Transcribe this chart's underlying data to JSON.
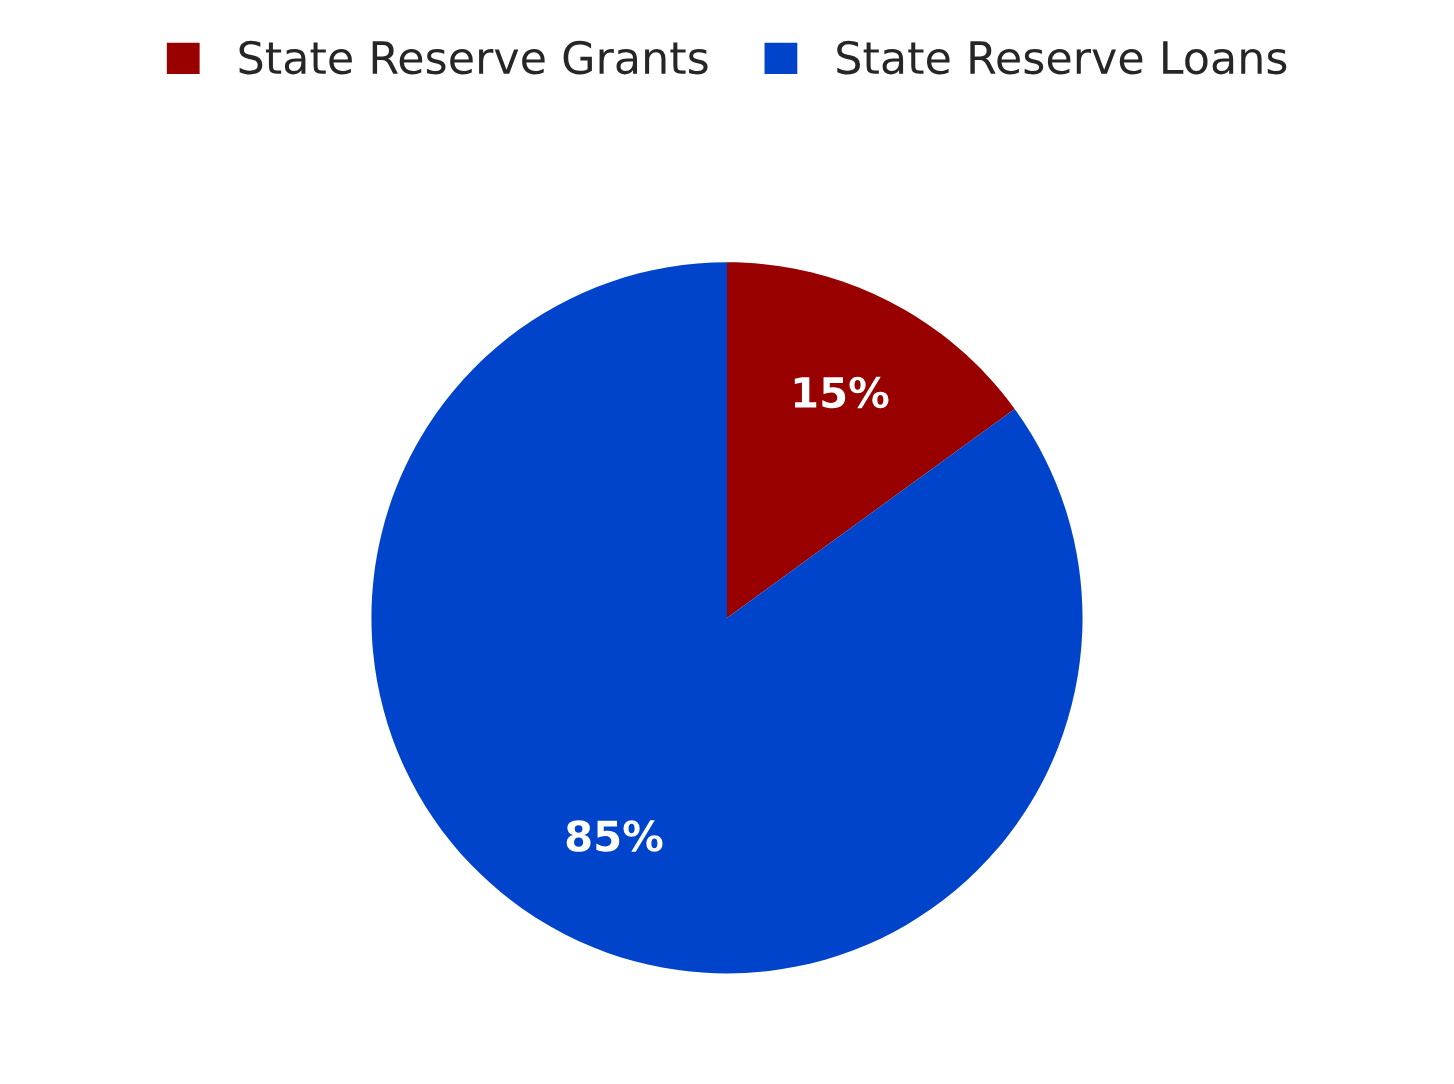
{
  "chart_data": {
    "type": "pie",
    "categories": [
      "State Reserve Grants",
      "State Reserve Loans"
    ],
    "values": [
      15,
      85
    ],
    "colors": [
      "#990000",
      "#0044cc"
    ],
    "value_labels": [
      "15%",
      "85%"
    ],
    "legend": "top"
  }
}
